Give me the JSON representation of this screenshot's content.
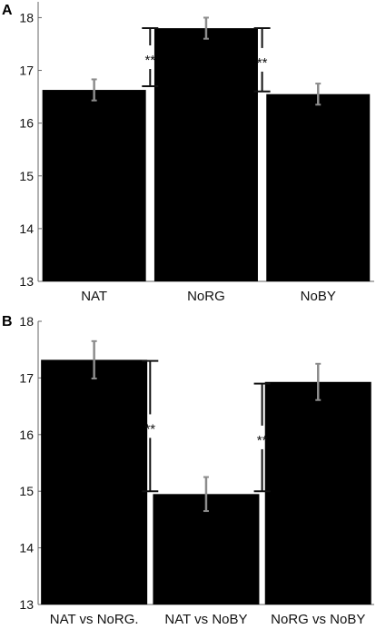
{
  "chart_data": [
    {
      "panel": "A",
      "type": "bar",
      "categories": [
        "NAT",
        "NoRG",
        "NoBY"
      ],
      "values": [
        16.63,
        17.8,
        16.55
      ],
      "errors": [
        0.2,
        0.2,
        0.2
      ],
      "ylim": [
        13,
        18.3
      ],
      "yticks": [
        13,
        14,
        15,
        16,
        17,
        18
      ],
      "bar_color": "#000000",
      "errorbar_color": "#8c8c8c",
      "significance": [
        {
          "between": [
            0,
            1
          ],
          "range": [
            16.7,
            17.8
          ],
          "label": "**"
        },
        {
          "between": [
            1,
            2
          ],
          "range": [
            16.6,
            17.8
          ],
          "label": "**"
        }
      ]
    },
    {
      "panel": "B",
      "type": "bar",
      "categories": [
        "NAT vs NoRG.",
        "NAT vs NoBY",
        "NoRG vs NoBY"
      ],
      "values": [
        17.32,
        14.95,
        16.93
      ],
      "errors": [
        0.33,
        0.3,
        0.32
      ],
      "ylim": [
        13,
        18
      ],
      "yticks": [
        13,
        14,
        15,
        16,
        17,
        18
      ],
      "bar_color": "#000000",
      "errorbar_color": "#8c8c8c",
      "significance": [
        {
          "between": [
            0,
            1
          ],
          "range": [
            15.0,
            17.3
          ],
          "label": "**"
        },
        {
          "between": [
            1,
            2
          ],
          "range": [
            15.0,
            16.9
          ],
          "label": "**"
        }
      ]
    }
  ]
}
